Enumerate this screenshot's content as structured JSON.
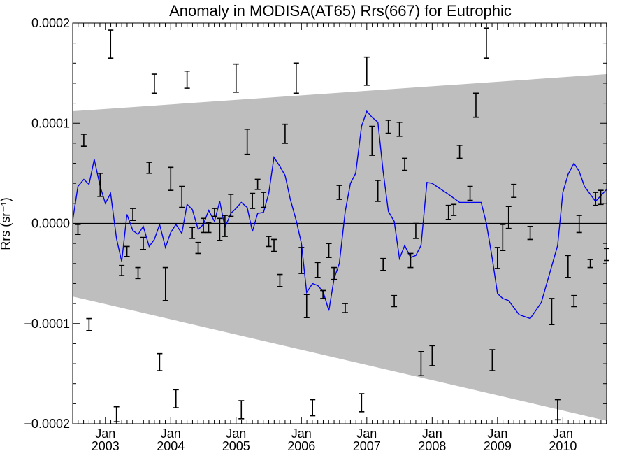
{
  "chart_data": {
    "type": "line",
    "title": "Anomaly in MODISA(AT65) Rrs(667) for Eutrophic",
    "ylabel": "Rrs (sr⁻¹)",
    "xlabel": "",
    "xlim": [
      2002.5,
      2010.67
    ],
    "ylim": [
      -0.0002,
      0.0002
    ],
    "y_ticks": [
      {
        "value": 0.0002,
        "label": "0.0002"
      },
      {
        "value": 0.0001,
        "label": "0.0001"
      },
      {
        "value": 0.0,
        "label": "0.0000"
      },
      {
        "value": -0.0001,
        "label": "−0.0001"
      },
      {
        "value": -0.0002,
        "label": "−0.0002"
      }
    ],
    "x_ticks": [
      {
        "value": 2003.0,
        "month": "Jan",
        "year": "2003"
      },
      {
        "value": 2004.0,
        "month": "Jan",
        "year": "2004"
      },
      {
        "value": 2005.0,
        "month": "Jan",
        "year": "2005"
      },
      {
        "value": 2006.0,
        "month": "Jan",
        "year": "2006"
      },
      {
        "value": 2007.0,
        "month": "Jan",
        "year": "2007"
      },
      {
        "value": 2008.0,
        "month": "Jan",
        "year": "2008"
      },
      {
        "value": 2009.0,
        "month": "Jan",
        "year": "2009"
      },
      {
        "value": 2010.0,
        "month": "Jan",
        "year": "2010"
      }
    ],
    "grid": false,
    "band": {
      "name": "",
      "color": "#bebebe",
      "x": [
        2002.5,
        2010.67
      ],
      "upper": [
        0.000112,
        0.000149
      ],
      "lower": [
        -7.3e-05,
        -0.000197
      ]
    },
    "reference_line": {
      "y": 0.0,
      "color": "#000000"
    },
    "series": [
      {
        "name": "",
        "color": "#0000ee",
        "x": [
          2002.5,
          2002.58,
          2002.67,
          2002.75,
          2002.83,
          2002.92,
          2003.0,
          2003.08,
          2003.17,
          2003.25,
          2003.33,
          2003.42,
          2003.5,
          2003.58,
          2003.67,
          2003.75,
          2003.83,
          2003.92,
          2004.0,
          2004.08,
          2004.17,
          2004.25,
          2004.33,
          2004.42,
          2004.5,
          2004.58,
          2004.67,
          2004.75,
          2004.83,
          2004.92,
          2005.0,
          2005.08,
          2005.17,
          2005.25,
          2005.33,
          2005.42,
          2005.5,
          2005.58,
          2005.67,
          2005.75,
          2005.83,
          2005.92,
          2006.0,
          2006.08,
          2006.17,
          2006.25,
          2006.33,
          2006.42,
          2006.5,
          2006.58,
          2006.67,
          2006.75,
          2006.83,
          2006.92,
          2007.0,
          2007.08,
          2007.17,
          2007.25,
          2007.33,
          2007.42,
          2007.5,
          2007.58,
          2007.67,
          2007.75,
          2007.83,
          2007.92,
          2008.0,
          2008.25,
          2008.42,
          2008.75,
          2008.83,
          2008.92,
          2009.0,
          2009.08,
          2009.17,
          2009.33,
          2009.5,
          2009.67,
          2009.92,
          2010.0,
          2010.08,
          2010.17,
          2010.25,
          2010.33,
          2010.5,
          2010.67
        ],
        "values": [
          3e-06,
          3.7e-05,
          4.4e-05,
          3.9e-05,
          6.4e-05,
          3.7e-05,
          2e-05,
          3e-05,
          -1.5e-05,
          -3.8e-05,
          9e-06,
          -7e-06,
          -1.1e-05,
          -3e-06,
          -2.3e-05,
          -1.6e-05,
          -1e-06,
          -2.4e-05,
          -9e-06,
          -1e-06,
          -1e-05,
          1.9e-05,
          1.4e-05,
          -6e-06,
          -1e-06,
          1.3e-05,
          2e-06,
          2.2e-05,
          -4e-06,
          1e-05,
          1.5e-05,
          2.1e-05,
          1.6e-05,
          -8e-06,
          1e-05,
          1.1e-05,
          3e-05,
          6.6e-05,
          5.7e-05,
          4.8e-05,
          2.4e-05,
          3e-06,
          -2e-05,
          -6.9e-05,
          -6e-05,
          -6.2e-05,
          -6.8e-05,
          -8.7e-05,
          -5.5e-05,
          -4e-05,
          1.2e-05,
          4e-05,
          5e-05,
          9.7e-05,
          0.000112,
          0.000106,
          0.000101,
          5.2e-05,
          1.2e-05,
          2e-06,
          -3.5e-05,
          -2.2e-05,
          -3.4e-05,
          -3.2e-05,
          -2.2e-05,
          4.1e-05,
          4e-05,
          2.9e-05,
          2.1e-05,
          2.1e-05,
          0.0,
          -3.5e-05,
          -7e-05,
          -7.5e-05,
          -7.7e-05,
          -9.1e-05,
          -9.5e-05,
          -7.9e-05,
          -2.2e-05,
          3.1e-05,
          4.9e-05,
          6e-05,
          5.2e-05,
          3.7e-05,
          2.2e-05,
          3.4e-05
        ]
      }
    ],
    "error_bars": [
      {
        "x": 2002.58,
        "lo": -1.1e-05,
        "hi": -1e-06
      },
      {
        "x": 2002.67,
        "lo": 7.7e-05,
        "hi": 8.9e-05
      },
      {
        "x": 2002.75,
        "lo": -0.000107,
        "hi": -9.5e-05
      },
      {
        "x": 2002.92,
        "lo": 2.7e-05,
        "hi": 5e-05
      },
      {
        "x": 2003.08,
        "lo": 0.000165,
        "hi": 0.000193
      },
      {
        "x": 2003.17,
        "lo": -0.000198,
        "hi": -0.000183
      },
      {
        "x": 2003.25,
        "lo": -5.2e-05,
        "hi": -4.2e-05
      },
      {
        "x": 2003.33,
        "lo": -3.3e-05,
        "hi": -2.3e-05
      },
      {
        "x": 2003.42,
        "lo": 3e-06,
        "hi": 1.5e-05
      },
      {
        "x": 2003.5,
        "lo": -5.5e-05,
        "hi": -4.4e-05
      },
      {
        "x": 2003.58,
        "lo": -2.6e-05,
        "hi": -1.4e-05
      },
      {
        "x": 2003.67,
        "lo": 5e-05,
        "hi": 6.1e-05
      },
      {
        "x": 2003.75,
        "lo": 0.00013,
        "hi": 0.000149
      },
      {
        "x": 2003.83,
        "lo": -0.000147,
        "hi": -0.00013
      },
      {
        "x": 2003.92,
        "lo": -7.7e-05,
        "hi": -4.4e-05
      },
      {
        "x": 2004.0,
        "lo": 3.3e-05,
        "hi": 5.6e-05
      },
      {
        "x": 2004.08,
        "lo": -0.000184,
        "hi": -0.000166
      },
      {
        "x": 2004.17,
        "lo": 1.6e-05,
        "hi": 3.7e-05
      },
      {
        "x": 2004.25,
        "lo": 0.000135,
        "hi": 0.000152
      },
      {
        "x": 2004.33,
        "lo": -1.5e-05,
        "hi": -4e-06
      },
      {
        "x": 2004.42,
        "lo": -3e-05,
        "hi": -1.9e-05
      },
      {
        "x": 2004.5,
        "lo": -9e-06,
        "hi": 5e-06
      },
      {
        "x": 2004.58,
        "lo": -9e-06,
        "hi": 1e-06
      },
      {
        "x": 2004.67,
        "lo": 7e-06,
        "hi": 1.5e-05
      },
      {
        "x": 2004.75,
        "lo": -1.7e-05,
        "hi": 5e-06
      },
      {
        "x": 2004.83,
        "lo": -1.3e-05,
        "hi": 8e-06
      },
      {
        "x": 2004.92,
        "lo": 7e-06,
        "hi": 2.9e-05
      },
      {
        "x": 2005.0,
        "lo": 0.000131,
        "hi": 0.000159
      },
      {
        "x": 2005.08,
        "lo": -0.000195,
        "hi": -0.000177
      },
      {
        "x": 2005.17,
        "lo": 6.9e-05,
        "hi": 9.4e-05
      },
      {
        "x": 2005.25,
        "lo": 1.5e-05,
        "hi": 3e-05
      },
      {
        "x": 2005.33,
        "lo": 3.4e-05,
        "hi": 4.4e-05
      },
      {
        "x": 2005.42,
        "lo": 1.6e-05,
        "hi": 3.1e-05
      },
      {
        "x": 2005.5,
        "lo": -2.3e-05,
        "hi": -1.3e-05
      },
      {
        "x": 2005.58,
        "lo": -2.8e-05,
        "hi": -1.6e-05
      },
      {
        "x": 2005.67,
        "lo": -6.3e-05,
        "hi": -5.1e-05
      },
      {
        "x": 2005.75,
        "lo": 8e-05,
        "hi": 9.9e-05
      },
      {
        "x": 2005.92,
        "lo": 0.00013,
        "hi": 0.00016
      },
      {
        "x": 2006.0,
        "lo": -5e-05,
        "hi": -2.4e-05
      },
      {
        "x": 2006.08,
        "lo": -9.4e-05,
        "hi": -7.1e-05
      },
      {
        "x": 2006.17,
        "lo": -0.000192,
        "hi": -0.000176
      },
      {
        "x": 2006.25,
        "lo": -5.4e-05,
        "hi": -3.9e-05
      },
      {
        "x": 2006.33,
        "lo": -7.5e-05,
        "hi": -6.7e-05
      },
      {
        "x": 2006.42,
        "lo": -3.4e-05,
        "hi": -2e-05
      },
      {
        "x": 2006.5,
        "lo": -5.6e-05,
        "hi": -4.4e-05
      },
      {
        "x": 2006.58,
        "lo": 2.4e-05,
        "hi": 3.8e-05
      },
      {
        "x": 2006.67,
        "lo": -8.9e-05,
        "hi": -8e-05
      },
      {
        "x": 2006.92,
        "lo": -0.000188,
        "hi": -0.00017
      },
      {
        "x": 2007.0,
        "lo": 0.000138,
        "hi": 0.000166
      },
      {
        "x": 2007.08,
        "lo": 6.8e-05,
        "hi": 9.7e-05
      },
      {
        "x": 2007.17,
        "lo": 2.2e-05,
        "hi": 4.3e-05
      },
      {
        "x": 2007.25,
        "lo": -4.7e-05,
        "hi": -3.5e-05
      },
      {
        "x": 2007.33,
        "lo": 9e-05,
        "hi": 0.000103
      },
      {
        "x": 2007.42,
        "lo": -8.3e-05,
        "hi": -7.2e-05
      },
      {
        "x": 2007.5,
        "lo": 8.7e-05,
        "hi": 0.000101
      },
      {
        "x": 2007.58,
        "lo": 5.3e-05,
        "hi": 6.5e-05
      },
      {
        "x": 2007.67,
        "lo": -4.4e-05,
        "hi": -3e-05
      },
      {
        "x": 2007.75,
        "lo": -1.5e-05,
        "hi": 0.0
      },
      {
        "x": 2007.83,
        "lo": -0.000152,
        "hi": -0.000128
      },
      {
        "x": 2008.0,
        "lo": -0.000142,
        "hi": -0.000122
      },
      {
        "x": 2008.25,
        "lo": 4e-06,
        "hi": 1.8e-05
      },
      {
        "x": 2008.33,
        "lo": 8e-06,
        "hi": 1.9e-05
      },
      {
        "x": 2008.42,
        "lo": 6.5e-05,
        "hi": 7.8e-05
      },
      {
        "x": 2008.58,
        "lo": 2.3e-05,
        "hi": 3.7e-05
      },
      {
        "x": 2008.67,
        "lo": 0.000106,
        "hi": 0.00013
      },
      {
        "x": 2008.83,
        "lo": 0.000165,
        "hi": 0.000195
      },
      {
        "x": 2008.92,
        "lo": -0.000147,
        "hi": -0.000126
      },
      {
        "x": 2009.0,
        "lo": -4.5e-05,
        "hi": -2.4e-05
      },
      {
        "x": 2009.08,
        "lo": -2.7e-05,
        "hi": -1e-06
      },
      {
        "x": 2009.17,
        "lo": -5e-06,
        "hi": 1.7e-05
      },
      {
        "x": 2009.25,
        "lo": 2.6e-05,
        "hi": 3.9e-05
      },
      {
        "x": 2009.5,
        "lo": -1.6e-05,
        "hi": -3e-06
      },
      {
        "x": 2009.83,
        "lo": -0.000101,
        "hi": -7.5e-05
      },
      {
        "x": 2009.92,
        "lo": -0.000196,
        "hi": -0.000176
      },
      {
        "x": 2010.08,
        "lo": -5.4e-05,
        "hi": -3.2e-05
      },
      {
        "x": 2010.17,
        "lo": -8.3e-05,
        "hi": -7.2e-05
      },
      {
        "x": 2010.25,
        "lo": -9e-06,
        "hi": 8e-06
      },
      {
        "x": 2010.42,
        "lo": -4.4e-05,
        "hi": -3.6e-05
      },
      {
        "x": 2010.5,
        "lo": 1.8e-05,
        "hi": 3.1e-05
      },
      {
        "x": 2010.58,
        "lo": 1.9e-05,
        "hi": 3.3e-05
      },
      {
        "x": 2010.67,
        "lo": -3.7e-05,
        "hi": -2.5e-05
      }
    ]
  }
}
